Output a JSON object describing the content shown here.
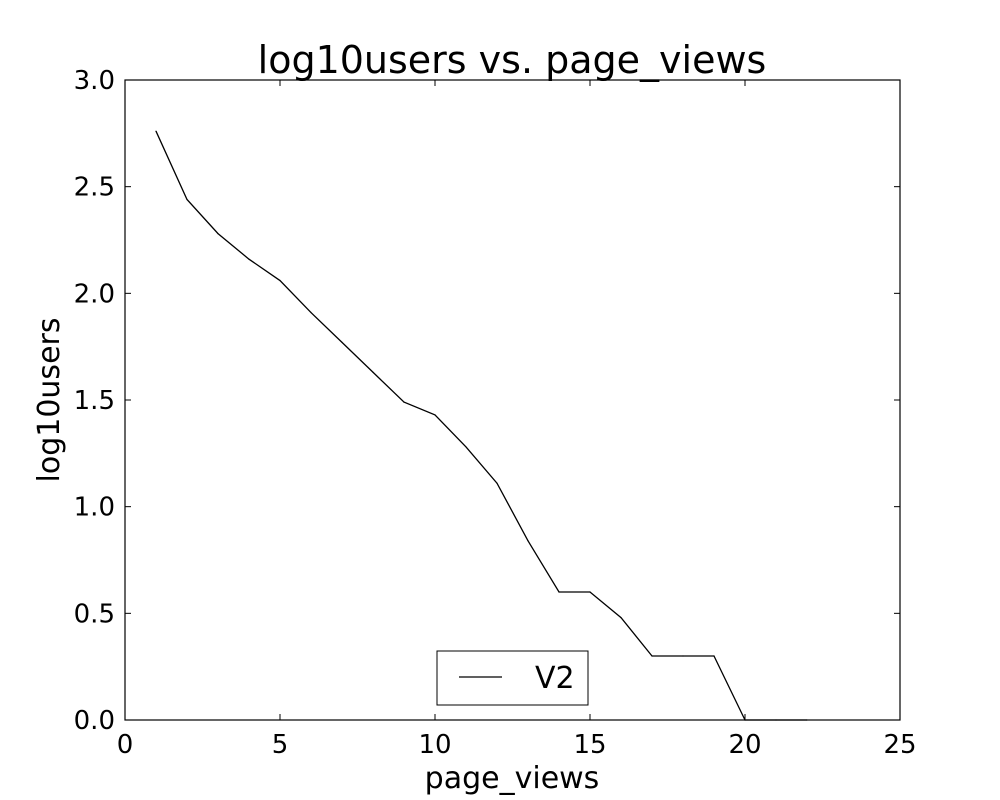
{
  "chart_data": {
    "type": "line",
    "title": "log10users vs. page_views",
    "xlabel": "page_views",
    "ylabel": "log10users",
    "xlim": [
      0,
      25
    ],
    "ylim": [
      0,
      3
    ],
    "x_ticks": [
      "0",
      "5",
      "10",
      "15",
      "20",
      "25"
    ],
    "y_ticks": [
      "0.0",
      "0.5",
      "1.0",
      "1.5",
      "2.0",
      "2.5",
      "3.0"
    ],
    "grid": false,
    "legend_position": "lower center",
    "series": [
      {
        "name": "V2",
        "color": "#000000",
        "x": [
          1,
          2,
          3,
          4,
          5,
          6,
          7,
          8,
          9,
          10,
          11,
          12,
          13,
          14,
          15,
          16,
          17,
          18,
          19,
          20,
          21,
          22
        ],
        "y": [
          2.76,
          2.44,
          2.28,
          2.16,
          2.06,
          1.91,
          1.77,
          1.63,
          1.49,
          1.43,
          1.28,
          1.11,
          0.84,
          0.6,
          0.6,
          0.48,
          0.3,
          0.3,
          0.3,
          0.0,
          0.0,
          0.0
        ]
      }
    ]
  }
}
